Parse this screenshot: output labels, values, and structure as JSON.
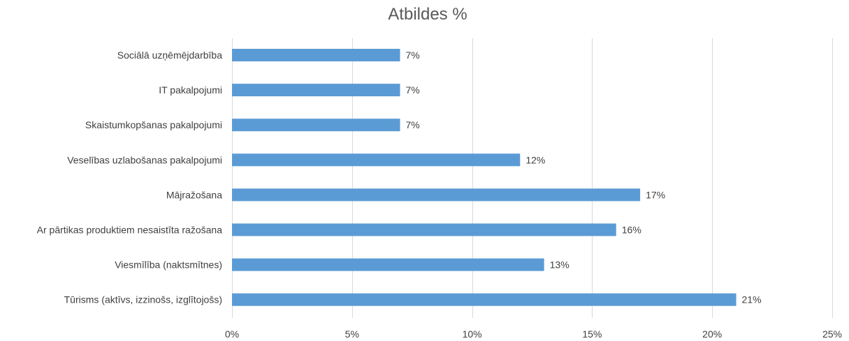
{
  "chart_data": {
    "type": "bar",
    "orientation": "horizontal",
    "title": "Atbildes %",
    "xlabel": "",
    "ylabel": "",
    "categories": [
      "Sociālā uzņēmējdarbība",
      "IT pakalpojumi",
      "Skaistumkopšanas pakalpojumi",
      "Veselības uzlabošanas pakalpojumi",
      "Mājražošana",
      "Ar pārtikas produktiem nesaistīta ražošana",
      "Viesmīlība (naktsmītnes)",
      "Tūrisms (aktīvs, izzinošs, izglītojošs)"
    ],
    "values": [
      7,
      7,
      7,
      12,
      17,
      16,
      13,
      21
    ],
    "data_labels": [
      "7%",
      "7%",
      "7%",
      "12%",
      "17%",
      "16%",
      "13%",
      "21%"
    ],
    "xlim": [
      0,
      25
    ],
    "x_ticks": [
      0,
      5,
      10,
      15,
      20,
      25
    ],
    "x_tick_labels": [
      "0%",
      "5%",
      "10%",
      "15%",
      "20%",
      "25%"
    ],
    "grid": "vertical",
    "legend": "none",
    "bar_color": "#5b9bd5"
  }
}
